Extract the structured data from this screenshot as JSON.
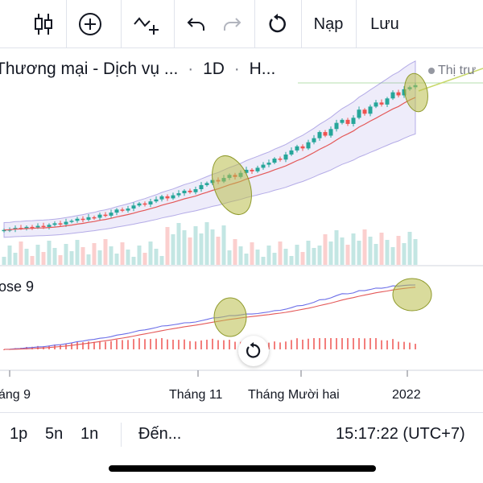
{
  "toolbar": {
    "items": [
      {
        "icon": "candlestick-icon"
      },
      {
        "icon": "add-circle-icon"
      },
      {
        "icon": "indicator-add-icon"
      },
      {
        "icon": "undo-icon"
      },
      {
        "icon": "redo-icon"
      },
      {
        "icon": "reset-icon"
      }
    ],
    "load_label": "Nạp",
    "save_label": "Lưu"
  },
  "legend": {
    "symbol": "Thương mại - Dịch vụ ...",
    "sep": "·",
    "interval": "1D",
    "exchange": "H..."
  },
  "price_tag": "Thị trư",
  "indicator_label": "ose 9",
  "bottom_bar": {
    "intervals": [
      "1p",
      "5n",
      "1n"
    ],
    "goto_label": "Đến...",
    "clock": "15:17:22 (UTC+7)"
  },
  "colors": {
    "up": "#26a69a",
    "down": "#ef5350",
    "band": "#7e6fd6",
    "ma": "#e45858",
    "macd": "#6b6ee8",
    "signal": "#e45858",
    "highlight": "#b9bd4a"
  },
  "chart_data": {
    "type": "candlestick",
    "x_ticks": [
      "áng 9",
      "Tháng 11",
      "Tháng Mười hai",
      "2022"
    ],
    "bars_per_month": 22,
    "price_series": [
      {
        "name": "close",
        "values": [
          20,
          21,
          24,
          23,
          26,
          25,
          28,
          26,
          30,
          33,
          31,
          36,
          38,
          42,
          40,
          45,
          44,
          50,
          48,
          54,
          60,
          58,
          62,
          68,
          72,
          70,
          76,
          80,
          86,
          82,
          88,
          92,
          97,
          94,
          100,
          108,
          112,
          118,
          115,
          122,
          128,
          124,
          132,
          138,
          135,
          142,
          148,
          152,
          160,
          158,
          168,
          176,
          184,
          180,
          192,
          200,
          212,
          205,
          218,
          230,
          236,
          228,
          240,
          256,
          248,
          262,
          270,
          266,
          278,
          290,
          284,
          296,
          300,
          304
        ]
      }
    ],
    "volume_visible": true,
    "bollinger_visible": true,
    "moving_average_visible": true,
    "indicator": "MACD",
    "highlighted_regions": 4
  }
}
